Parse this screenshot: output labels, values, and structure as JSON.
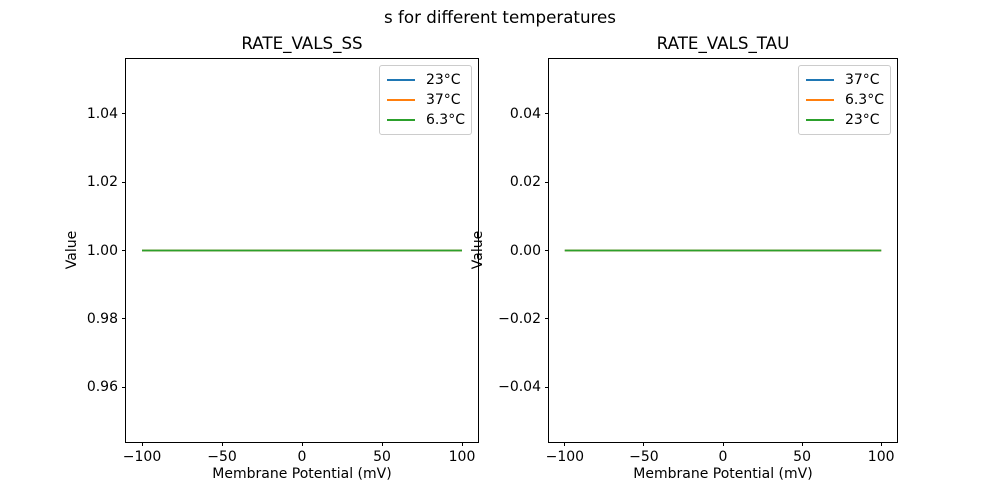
{
  "figure": {
    "suptitle": "s for different temperatures",
    "background": "#ffffff",
    "text_color": "#000000"
  },
  "chart_data": [
    {
      "type": "line",
      "title": "RATE_VALS_SS",
      "xlabel": "Membrane Potential (mV)",
      "ylabel": "Value",
      "xlim": [
        -110,
        110
      ],
      "ylim": [
        0.944,
        1.056
      ],
      "xticks": [
        -100,
        -50,
        0,
        50,
        100
      ],
      "xtick_labels": [
        "−100",
        "−50",
        "0",
        "50",
        "100"
      ],
      "yticks": [
        0.96,
        0.98,
        1.0,
        1.02,
        1.04
      ],
      "ytick_labels": [
        "0.96",
        "0.98",
        "1.00",
        "1.02",
        "1.04"
      ],
      "grid": false,
      "legend_position": "upper right",
      "legend": [
        {
          "label": "23°C",
          "color": "#1f77b4"
        },
        {
          "label": "37°C",
          "color": "#ff7f0e"
        },
        {
          "label": "6.3°C",
          "color": "#2ca02c"
        }
      ],
      "series": [
        {
          "name": "23°C",
          "color": "#1f77b4",
          "x": [
            -100,
            100
          ],
          "y": [
            1.0,
            1.0
          ]
        },
        {
          "name": "37°C",
          "color": "#ff7f0e",
          "x": [
            -100,
            100
          ],
          "y": [
            1.0,
            1.0
          ]
        },
        {
          "name": "6.3°C",
          "color": "#2ca02c",
          "x": [
            -100,
            100
          ],
          "y": [
            1.0,
            1.0
          ]
        }
      ]
    },
    {
      "type": "line",
      "title": "RATE_VALS_TAU",
      "xlabel": "Membrane Potential (mV)",
      "ylabel": "Value",
      "xlim": [
        -110,
        110
      ],
      "ylim": [
        -0.056,
        0.056
      ],
      "xticks": [
        -100,
        -50,
        0,
        50,
        100
      ],
      "xtick_labels": [
        "−100",
        "−50",
        "0",
        "50",
        "100"
      ],
      "yticks": [
        -0.04,
        -0.02,
        0.0,
        0.02,
        0.04
      ],
      "ytick_labels": [
        "−0.04",
        "−0.02",
        "0.00",
        "0.02",
        "0.04"
      ],
      "grid": false,
      "legend_position": "upper right",
      "legend": [
        {
          "label": "37°C",
          "color": "#1f77b4"
        },
        {
          "label": "6.3°C",
          "color": "#ff7f0e"
        },
        {
          "label": "23°C",
          "color": "#2ca02c"
        }
      ],
      "series": [
        {
          "name": "37°C",
          "color": "#1f77b4",
          "x": [
            -100,
            100
          ],
          "y": [
            0.0,
            0.0
          ]
        },
        {
          "name": "6.3°C",
          "color": "#ff7f0e",
          "x": [
            -100,
            100
          ],
          "y": [
            0.0,
            0.0
          ]
        },
        {
          "name": "23°C",
          "color": "#2ca02c",
          "x": [
            -100,
            100
          ],
          "y": [
            0.0,
            0.0
          ]
        }
      ]
    }
  ]
}
